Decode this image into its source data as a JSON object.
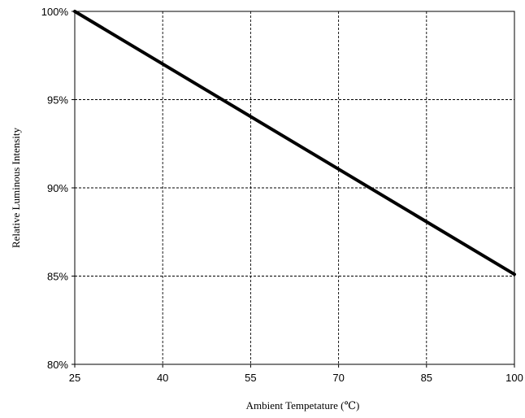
{
  "chart_data": {
    "type": "line",
    "title": "",
    "xlabel": "Ambient Tempetature (℃)",
    "ylabel": "Relative Luminous Intensity",
    "xlim": [
      25,
      100
    ],
    "ylim": [
      80,
      100
    ],
    "x_ticks": [
      25,
      40,
      55,
      70,
      85,
      100
    ],
    "y_ticks": [
      80,
      85,
      90,
      95,
      100
    ],
    "x_tick_labels": [
      "25",
      "40",
      "55",
      "70",
      "85",
      "100"
    ],
    "y_tick_labels": [
      "80%",
      "85%",
      "90%",
      "95%",
      "100%"
    ],
    "grid": true,
    "legend": "none",
    "series": [
      {
        "x": [
          25,
          100
        ],
        "y": [
          100,
          85.1
        ],
        "color": "#000000"
      }
    ]
  }
}
